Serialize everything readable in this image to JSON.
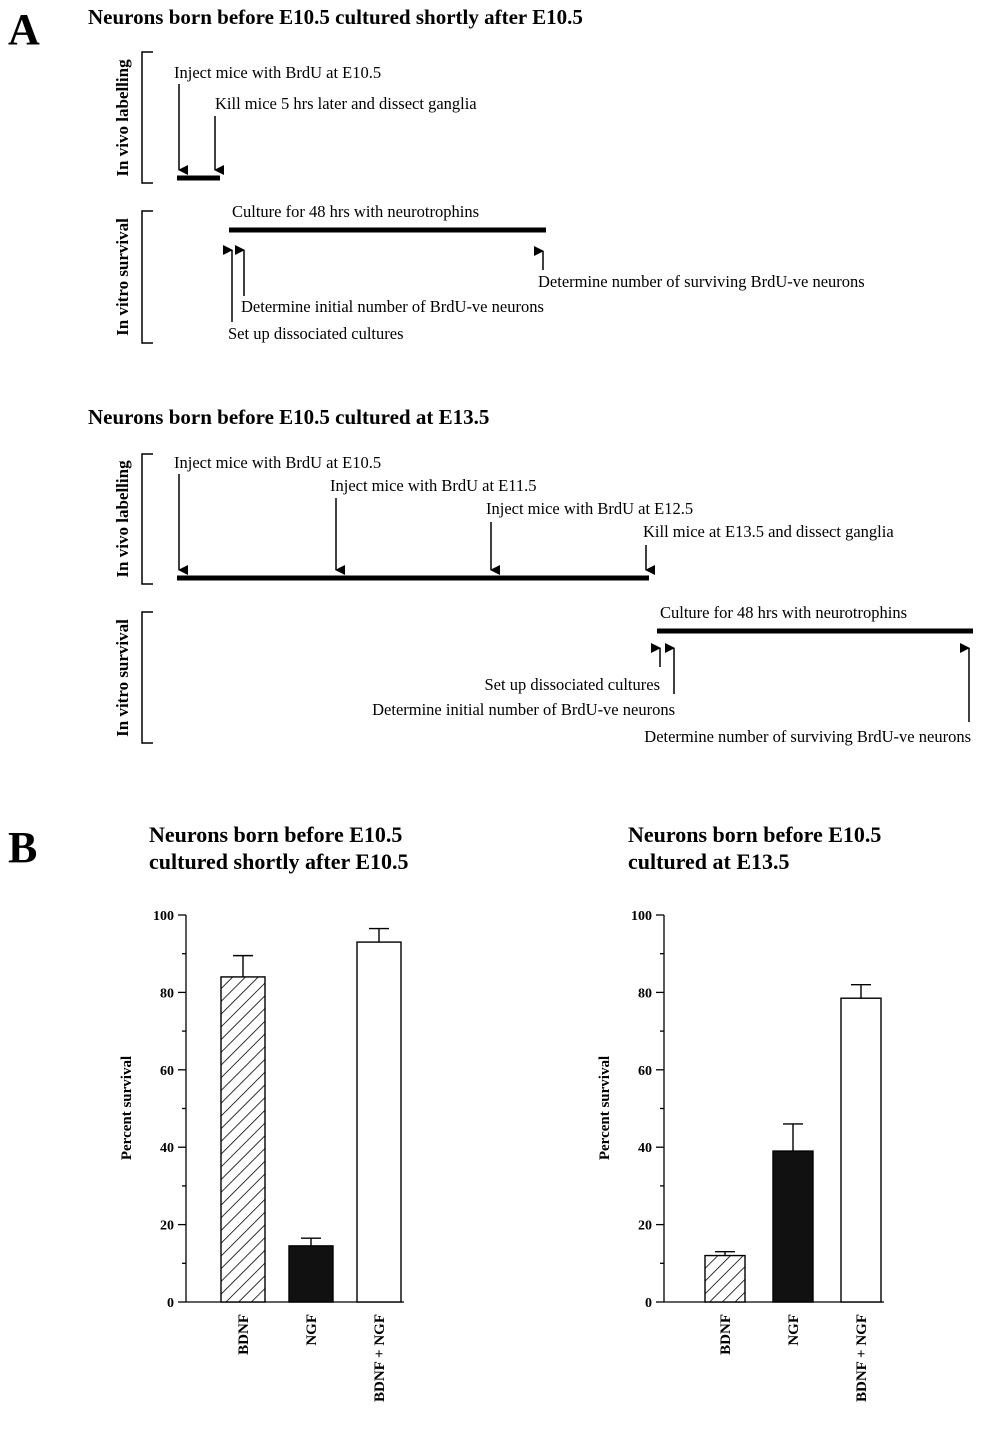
{
  "figure": {
    "panel_a_letter": "A",
    "panel_b_letter": "B"
  },
  "timeline1": {
    "title": "Neurons born before E10.5 cultured shortly after E10.5",
    "in_vivo_label": "In vivo labelling",
    "in_vitro_label": "In vitro survival",
    "inject": "Inject mice with BrdU at E10.5",
    "kill": "Kill mice 5 hrs later and dissect ganglia",
    "culture": "Culture for 48 hrs with neurotrophins",
    "determine_surviving": "Determine number of surviving BrdU-ve neurons",
    "determine_initial": "Determine initial number of BrdU-ve neurons",
    "setup": "Set up dissociated cultures"
  },
  "timeline2": {
    "title": "Neurons born before E10.5 cultured at E13.5",
    "in_vivo_label": "In vivo labelling",
    "in_vitro_label": "In vitro survival",
    "inject1": "Inject mice with BrdU at E10.5",
    "inject2": "Inject mice with BrdU at E11.5",
    "inject3": "Inject mice with BrdU at E12.5",
    "kill": "Kill mice at E13.5 and dissect ganglia",
    "culture": "Culture for 48 hrs with neurotrophins",
    "setup": "Set up dissociated cultures",
    "determine_initial": "Determine initial number of BrdU-ve neurons",
    "determine_surviving": "Determine number of surviving BrdU-ve neurons"
  },
  "chart_data": [
    {
      "type": "bar",
      "title": [
        "Neurons born before E10.5",
        "cultured shortly after E10.5"
      ],
      "categories": [
        "BDNF",
        "NGF",
        "BDNF + NGF"
      ],
      "values": [
        84,
        14.5,
        93
      ],
      "errors": [
        5.5,
        2,
        3.5
      ],
      "fills": [
        "hatch",
        "#111111",
        "#ffffff"
      ],
      "ylabel": "Percent survival",
      "ylim": [
        0,
        100
      ],
      "yticks": [
        0,
        20,
        40,
        60,
        80,
        100
      ]
    },
    {
      "type": "bar",
      "title": [
        "Neurons born before E10.5",
        "cultured at E13.5"
      ],
      "categories": [
        "BDNF",
        "NGF",
        "BDNF + NGF"
      ],
      "values": [
        12,
        39,
        78.5
      ],
      "errors": [
        1,
        7,
        3.5
      ],
      "fills": [
        "hatch",
        "#111111",
        "#ffffff"
      ],
      "ylabel": "Percent survival",
      "ylim": [
        0,
        100
      ],
      "yticks": [
        0,
        20,
        40,
        60,
        80,
        100
      ]
    }
  ]
}
